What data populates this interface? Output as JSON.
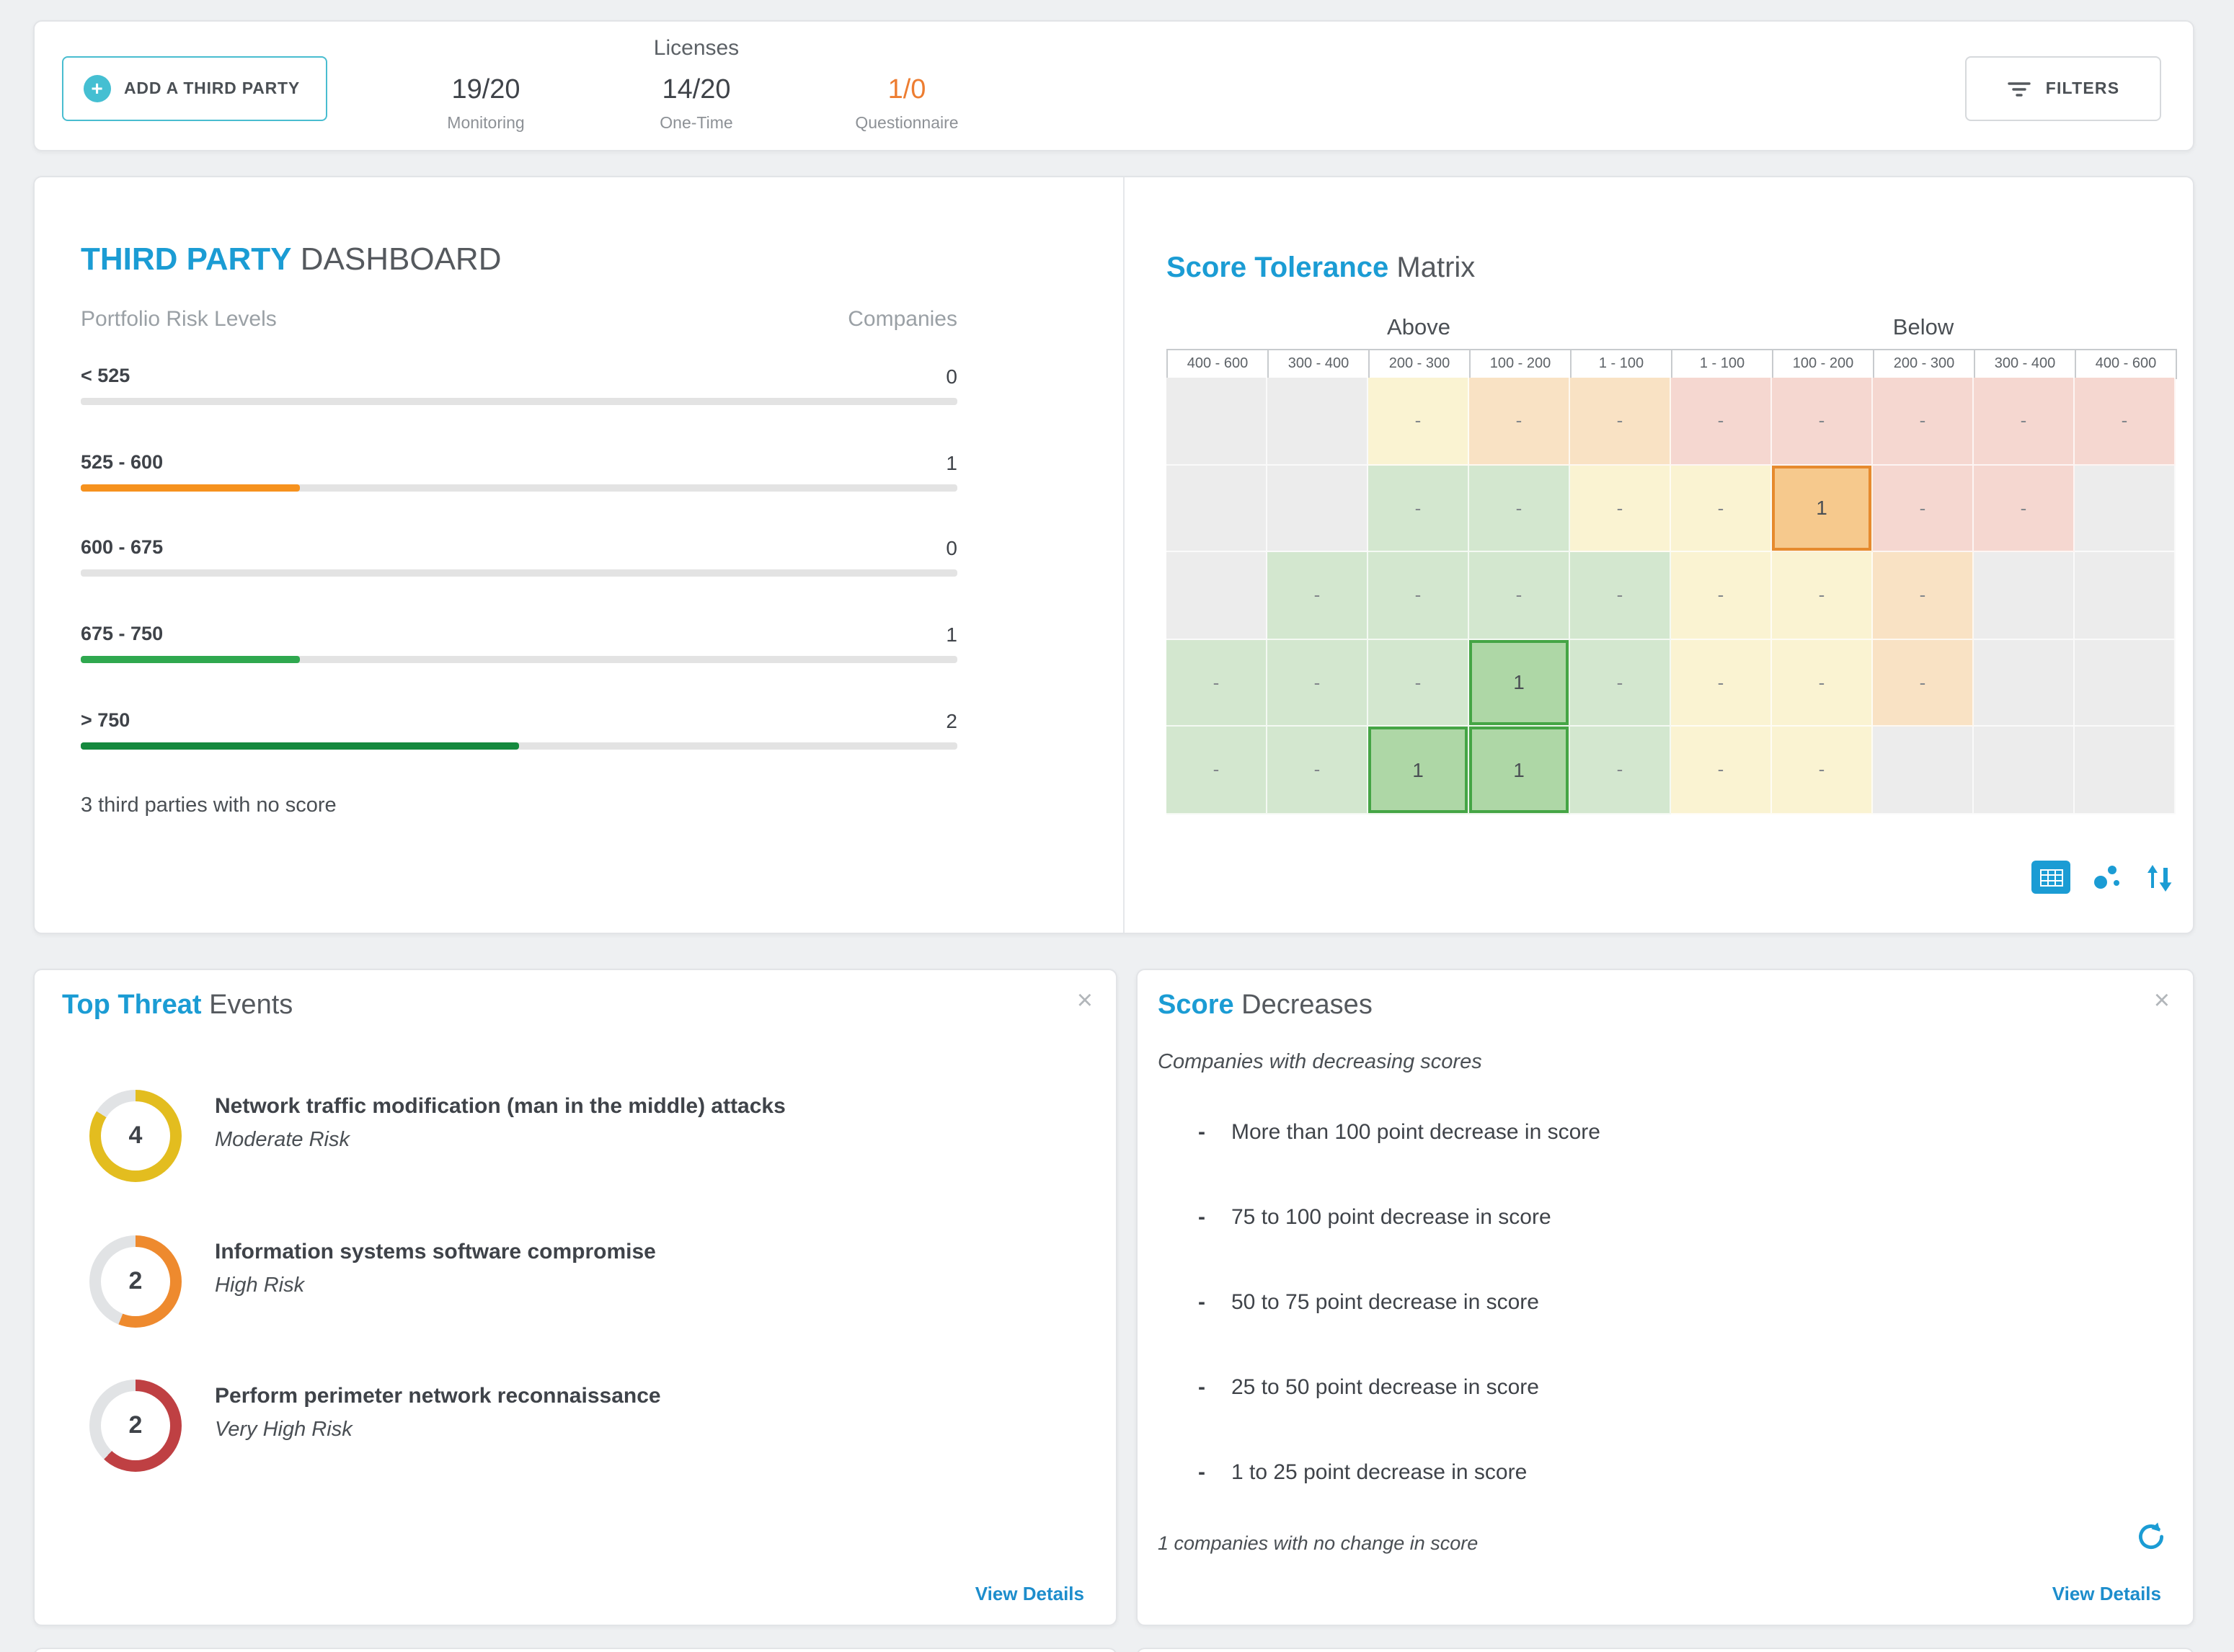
{
  "accent_color": "#1b9cd4",
  "icons": {
    "close": "×",
    "plus": "+"
  },
  "topbar": {
    "add_button_label": "ADD A THIRD PARTY",
    "licenses_title": "Licenses",
    "stats": [
      {
        "value": "19/20",
        "label": "Monitoring",
        "highlight": false
      },
      {
        "value": "14/20",
        "label": "One-Time",
        "highlight": false
      },
      {
        "value": "1/0",
        "label": "Questionnaire",
        "highlight": true
      }
    ],
    "filters_button_label": "FILTERS"
  },
  "dashboard": {
    "title_accent": "THIRD PARTY",
    "title_rest": " DASHBOARD",
    "col_left": "Portfolio Risk Levels",
    "col_right": "Companies",
    "risk_levels": [
      {
        "label": "< 525",
        "count": "0",
        "percent": 0,
        "color": "#e3e3e3"
      },
      {
        "label": "525 - 600",
        "count": "1",
        "percent": 25,
        "color": "#f6921e"
      },
      {
        "label": "600 - 675",
        "count": "0",
        "percent": 0,
        "color": "#e3e3e3"
      },
      {
        "label": "675 - 750",
        "count": "1",
        "percent": 25,
        "color": "#2fa84f"
      },
      {
        "label": "> 750",
        "count": "2",
        "percent": 50,
        "color": "#15893e"
      }
    ],
    "note": "3 third parties with no score"
  },
  "matrix": {
    "title_accent": "Score Tolerance",
    "title_rest": " Matrix",
    "groups": [
      "Above",
      "Below"
    ],
    "columns": [
      "400 - 600",
      "300 - 400",
      "200 - 300",
      "100 - 200",
      "1 - 100",
      "1 - 100",
      "100 - 200",
      "200 - 300",
      "300 - 400",
      "400 - 600"
    ],
    "cell_colors": {
      "empty": "#ececec",
      "green": "#d3e7cf",
      "green_sel": "#aed7a6",
      "green_sel_border": "#45a545",
      "yellow": "#faf3d2",
      "orange": "#f9e2c4",
      "orange_sel": "#f6c98d",
      "orange_sel_border": "#e68a2e",
      "red": "#f5d7d0"
    },
    "rows": [
      [
        {
          "t": "empty"
        },
        {
          "t": "empty"
        },
        {
          "t": "yellow",
          "v": "-"
        },
        {
          "t": "orange",
          "v": "-"
        },
        {
          "t": "orange",
          "v": "-"
        },
        {
          "t": "red",
          "v": "-"
        },
        {
          "t": "red",
          "v": "-"
        },
        {
          "t": "red",
          "v": "-"
        },
        {
          "t": "red",
          "v": "-"
        },
        {
          "t": "red",
          "v": "-"
        }
      ],
      [
        {
          "t": "empty"
        },
        {
          "t": "empty"
        },
        {
          "t": "green",
          "v": "-"
        },
        {
          "t": "green",
          "v": "-"
        },
        {
          "t": "yellow",
          "v": "-"
        },
        {
          "t": "yellow",
          "v": "-"
        },
        {
          "t": "orange_sel",
          "v": "1"
        },
        {
          "t": "red",
          "v": "-"
        },
        {
          "t": "red",
          "v": "-"
        },
        {
          "t": "empty"
        }
      ],
      [
        {
          "t": "empty"
        },
        {
          "t": "green",
          "v": "-"
        },
        {
          "t": "green",
          "v": "-"
        },
        {
          "t": "green",
          "v": "-"
        },
        {
          "t": "green",
          "v": "-"
        },
        {
          "t": "yellow",
          "v": "-"
        },
        {
          "t": "yellow",
          "v": "-"
        },
        {
          "t": "orange",
          "v": "-"
        },
        {
          "t": "empty"
        },
        {
          "t": "empty"
        }
      ],
      [
        {
          "t": "green",
          "v": "-"
        },
        {
          "t": "green",
          "v": "-"
        },
        {
          "t": "green",
          "v": "-"
        },
        {
          "t": "green_sel",
          "v": "1"
        },
        {
          "t": "green",
          "v": "-"
        },
        {
          "t": "yellow",
          "v": "-"
        },
        {
          "t": "yellow",
          "v": "-"
        },
        {
          "t": "orange",
          "v": "-"
        },
        {
          "t": "empty"
        },
        {
          "t": "empty"
        }
      ],
      [
        {
          "t": "green",
          "v": "-"
        },
        {
          "t": "green",
          "v": "-"
        },
        {
          "t": "green_sel",
          "v": "1"
        },
        {
          "t": "green_sel",
          "v": "1"
        },
        {
          "t": "green",
          "v": "-"
        },
        {
          "t": "yellow",
          "v": "-"
        },
        {
          "t": "yellow",
          "v": "-"
        },
        {
          "t": "empty"
        },
        {
          "t": "empty"
        },
        {
          "t": "empty"
        }
      ]
    ]
  },
  "threats": {
    "title_accent": "Top Threat",
    "title_rest": " Events",
    "items": [
      {
        "count": "4",
        "title": "Network traffic modification (man in the middle) attacks",
        "risk": "Moderate Risk",
        "color": "#e3bd1f",
        "percent": 84
      },
      {
        "count": "2",
        "title": "Information systems software compromise",
        "risk": "High Risk",
        "color": "#ee8a2e",
        "percent": 56
      },
      {
        "count": "2",
        "title": "Perform perimeter network reconnaissance",
        "risk": "Very High Risk",
        "color": "#bf4043",
        "percent": 62
      }
    ],
    "view_details": "View Details"
  },
  "decreases": {
    "title_accent": "Score",
    "title_rest": " Decreases",
    "subtitle": "Companies with decreasing scores",
    "items": [
      {
        "value": "-",
        "label": "More than 100 point decrease in score"
      },
      {
        "value": "-",
        "label": "75 to 100 point decrease in score"
      },
      {
        "value": "-",
        "label": "50 to 75 point decrease in score"
      },
      {
        "value": "-",
        "label": "25 to 50 point decrease in score"
      },
      {
        "value": "-",
        "label": "1 to 25 point decrease in score"
      }
    ],
    "note": "1 companies with no change in score",
    "view_details": "View Details"
  }
}
